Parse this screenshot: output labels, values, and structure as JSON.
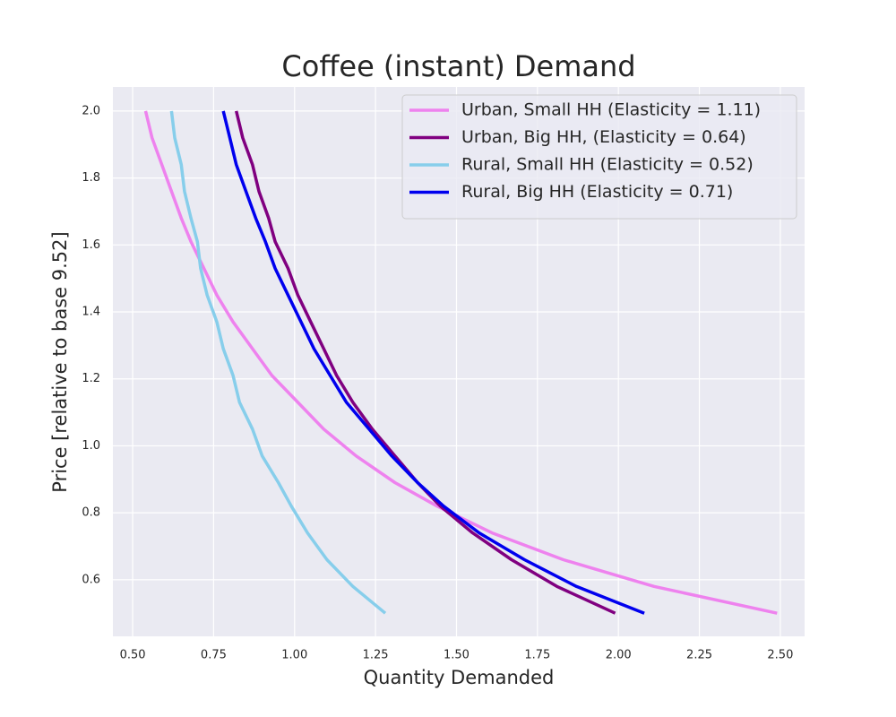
{
  "chart_data": {
    "type": "line",
    "title": "Coffee (instant) Demand",
    "x_label": "Quantity Demanded",
    "y_label": "Price [relative to base 9.52]",
    "xlim": [
      0.439,
      2.575
    ],
    "ylim": [
      0.431,
      2.072
    ],
    "xticks": [
      {
        "value": 0.5,
        "label": "0.50"
      },
      0.75,
      {
        "value": 1,
        "label": "1.00"
      },
      1.25,
      {
        "value": 1.5,
        "label": "1.50"
      },
      1.75,
      {
        "value": 2,
        "label": "2.00"
      },
      2.25,
      {
        "value": 2.5,
        "label": "2.50"
      }
    ],
    "yticks": [
      0.6,
      0.8,
      {
        "value": 1,
        "label": "1.0"
      },
      1.2,
      1.4,
      1.6,
      1.8,
      {
        "value": 2,
        "label": "2.0"
      }
    ],
    "grid": true,
    "legend": "upper right",
    "series": [
      {
        "name": "Urban, Small HH (Elasticity = 1.11)",
        "color": "#ee82ee",
        "x": [
          2.49,
          2.11,
          1.83,
          1.61,
          1.44,
          1.31,
          1.19,
          1.09,
          1.01,
          0.93,
          0.87,
          0.81,
          0.76,
          0.72,
          0.68,
          0.65,
          0.62,
          0.59,
          0.56,
          0.54
        ],
        "values": [
          0.5,
          0.58,
          0.66,
          0.74,
          0.82,
          0.89,
          0.97,
          1.05,
          1.13,
          1.21,
          1.29,
          1.37,
          1.45,
          1.53,
          1.61,
          1.68,
          1.76,
          1.84,
          1.92,
          2.0
        ]
      },
      {
        "name": "Urban, Big HH, (Elasticity = 0.64)",
        "color": "#800080",
        "x": [
          1.99,
          1.81,
          1.67,
          1.55,
          1.45,
          1.38,
          1.31,
          1.24,
          1.18,
          1.13,
          1.09,
          1.05,
          1.01,
          0.98,
          0.94,
          0.92,
          0.89,
          0.87,
          0.84,
          0.82
        ],
        "values": [
          0.5,
          0.58,
          0.66,
          0.74,
          0.82,
          0.89,
          0.97,
          1.05,
          1.13,
          1.21,
          1.29,
          1.37,
          1.45,
          1.53,
          1.61,
          1.68,
          1.76,
          1.84,
          1.92,
          2.0
        ]
      },
      {
        "name": "Rural, Small HH (Elasticity = 0.52)",
        "color": "#87ceeb",
        "x": [
          1.28,
          1.18,
          1.1,
          1.04,
          0.99,
          0.95,
          0.9,
          0.87,
          0.83,
          0.81,
          0.78,
          0.76,
          0.73,
          0.71,
          0.7,
          0.68,
          0.66,
          0.65,
          0.63,
          0.62
        ],
        "values": [
          0.5,
          0.58,
          0.66,
          0.74,
          0.82,
          0.89,
          0.97,
          1.05,
          1.13,
          1.21,
          1.29,
          1.37,
          1.45,
          1.53,
          1.61,
          1.68,
          1.76,
          1.84,
          1.92,
          2.0
        ]
      },
      {
        "name": "Rural, Big HH (Elasticity = 0.71)",
        "color": "#0000ee",
        "x": [
          2.08,
          1.87,
          1.71,
          1.57,
          1.46,
          1.38,
          1.3,
          1.23,
          1.16,
          1.11,
          1.06,
          1.02,
          0.98,
          0.94,
          0.91,
          0.88,
          0.85,
          0.82,
          0.8,
          0.78
        ],
        "values": [
          0.5,
          0.58,
          0.66,
          0.74,
          0.82,
          0.89,
          0.97,
          1.05,
          1.13,
          1.21,
          1.29,
          1.37,
          1.45,
          1.53,
          1.61,
          1.68,
          1.76,
          1.84,
          1.92,
          2.0
        ]
      }
    ]
  }
}
